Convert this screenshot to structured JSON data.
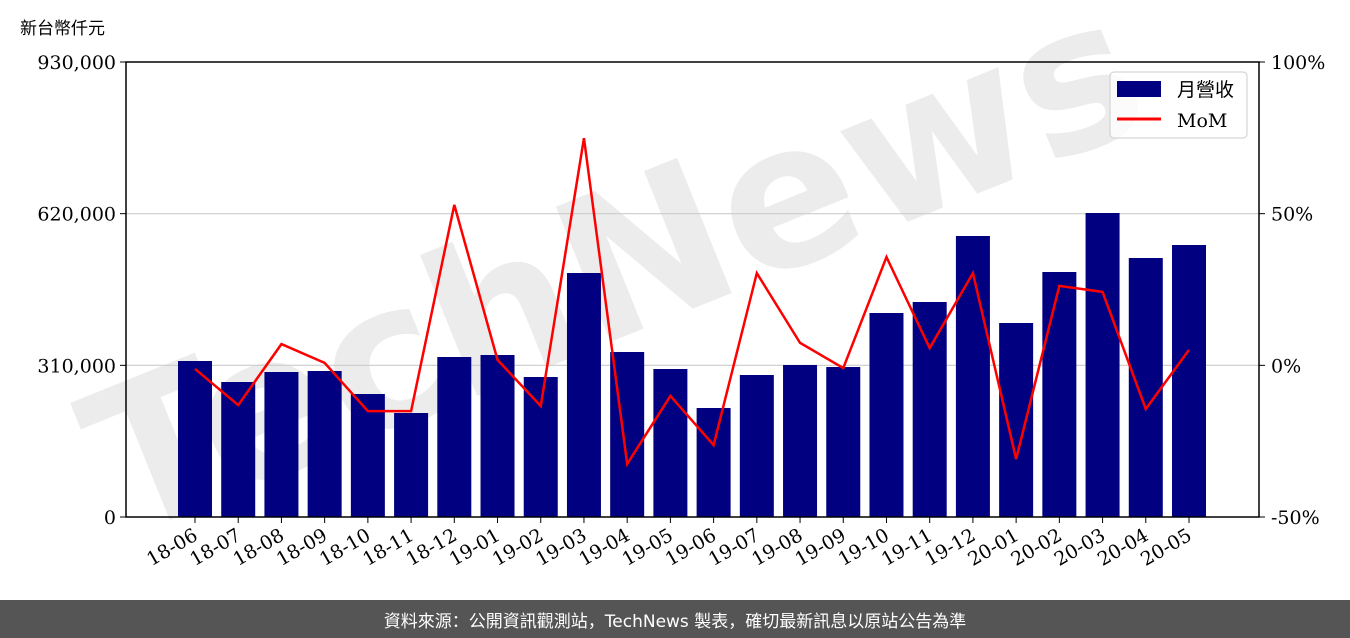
{
  "chart_data": {
    "type": "bar+line",
    "y_unit_label": "新台幣仟元",
    "categories": [
      "18-06",
      "18-07",
      "18-08",
      "18-09",
      "18-10",
      "18-11",
      "18-12",
      "19-01",
      "19-02",
      "19-03",
      "19-04",
      "19-05",
      "19-06",
      "19-07",
      "19-08",
      "19-09",
      "19-10",
      "19-11",
      "19-12",
      "20-01",
      "20-02",
      "20-03",
      "20-04",
      "20-05"
    ],
    "series": [
      {
        "name": "月營收",
        "type": "bar",
        "axis": "left",
        "color": "#000080",
        "values": [
          318857,
          275934,
          296374,
          298418,
          251407,
          212571,
          327033,
          331121,
          286154,
          498725,
          337253,
          302505,
          222791,
          290242,
          310681,
          306593,
          416967,
          439451,
          574352,
          396527,
          500769,
          621363,
          529385,
          555956
        ]
      },
      {
        "name": "MoM",
        "type": "line",
        "axis": "right",
        "color": "#ff0000",
        "values": [
          -1.2,
          -13.1,
          7.0,
          0.8,
          -15.1,
          -15.1,
          52.9,
          1.8,
          -13.4,
          74.9,
          -32.5,
          -10.1,
          -26.3,
          30.4,
          7.4,
          -0.9,
          35.7,
          5.7,
          30.4,
          -30.9,
          26.2,
          24.2,
          -14.4,
          5.1
        ]
      }
    ],
    "left_axis": {
      "ylim": [
        0,
        930000
      ],
      "ticks": [
        "0",
        "310,000",
        "620,000",
        "930,000"
      ]
    },
    "right_axis": {
      "ylim": [
        -50,
        100
      ],
      "ticks": [
        "-50%",
        "0%",
        "50%",
        "100%"
      ]
    },
    "grid": "horizontal",
    "legend_placement": "top-right",
    "watermark": "TechNews"
  },
  "footer": {
    "source_text": "資料來源：公開資訊觀測站，TechNews 製表，確切最新訊息以原站公告為準"
  }
}
